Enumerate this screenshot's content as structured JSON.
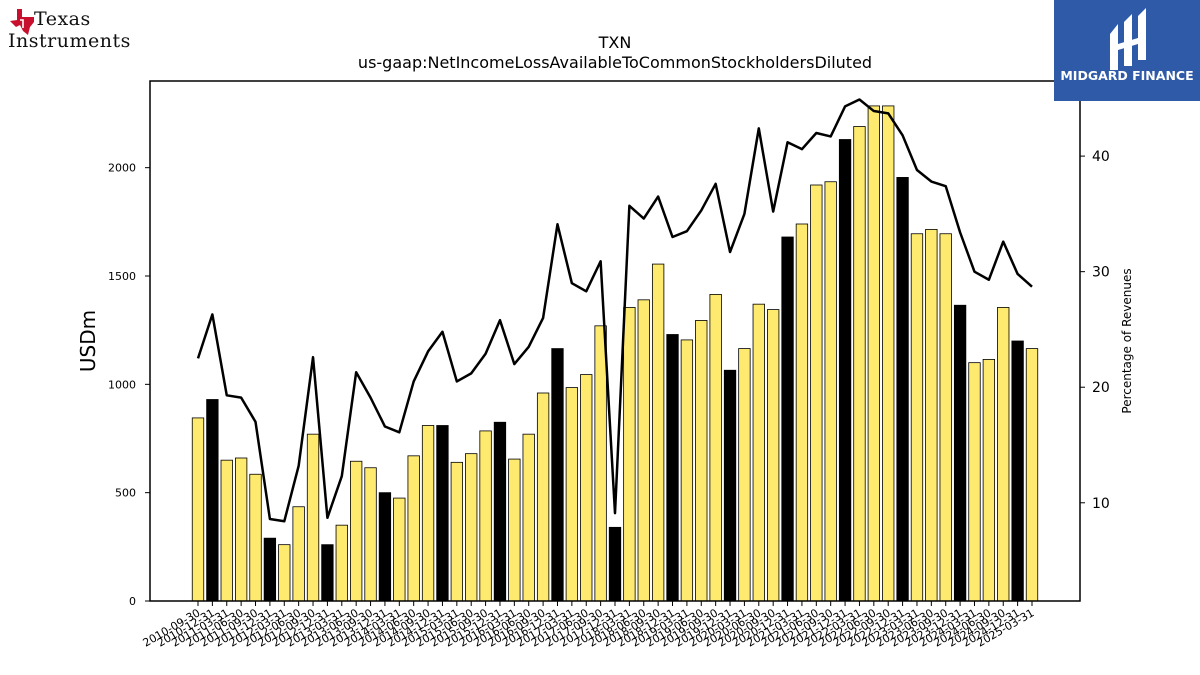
{
  "logos": {
    "left": {
      "line1": "Texas",
      "line2": "Instruments"
    },
    "right": {
      "name": "MIDGARD FINANCE"
    }
  },
  "chart_data": {
    "type": "bar",
    "title": "TXN",
    "subtitle": "us-gaap:NetIncomeLossAvailableToCommonStockholdersDiluted",
    "ylabel": "USDm",
    "y2label": "Percentage of Revenues",
    "ylim": [
      0,
      2400
    ],
    "y2lim": [
      1.5,
      46.5
    ],
    "yticks": [
      0,
      500,
      1000,
      1500,
      2000
    ],
    "y2ticks": [
      10,
      20,
      30,
      40
    ],
    "grid": false,
    "legend": "none",
    "colors": {
      "quarter": "#ffea70",
      "year_end": "#000000",
      "line": "#000000"
    },
    "categories": [
      "2010-09-30",
      "2010-12-31",
      "2011-03-31",
      "2011-06-30",
      "2011-09-30",
      "2011-12-31",
      "2012-03-31",
      "2012-06-30",
      "2012-09-30",
      "2012-12-31",
      "2013-03-31",
      "2013-06-30",
      "2013-09-30",
      "2013-12-31",
      "2014-03-31",
      "2014-06-30",
      "2014-09-30",
      "2014-12-31",
      "2015-03-31",
      "2015-06-30",
      "2015-09-30",
      "2015-12-31",
      "2016-03-31",
      "2016-06-30",
      "2016-09-30",
      "2016-12-31",
      "2017-03-31",
      "2017-06-30",
      "2017-09-30",
      "2017-12-31",
      "2018-03-31",
      "2018-06-30",
      "2018-09-30",
      "2018-12-31",
      "2019-03-31",
      "2019-06-30",
      "2019-09-30",
      "2019-12-31",
      "2020-03-31",
      "2020-06-30",
      "2020-09-30",
      "2020-12-31",
      "2021-03-31",
      "2021-06-30",
      "2021-09-30",
      "2021-12-31",
      "2022-03-31",
      "2022-06-30",
      "2022-09-30",
      "2022-12-31",
      "2023-03-31",
      "2023-06-30",
      "2023-09-30",
      "2023-12-31",
      "2024-03-31",
      "2024-06-30",
      "2024-09-30",
      "2024-12-31",
      "2025-03-31"
    ],
    "values": [
      845,
      930,
      650,
      660,
      585,
      290,
      260,
      435,
      770,
      260,
      350,
      645,
      615,
      500,
      475,
      670,
      810,
      810,
      640,
      680,
      785,
      825,
      655,
      770,
      960,
      1165,
      985,
      1045,
      1270,
      340,
      1355,
      1390,
      1555,
      1230,
      1205,
      1295,
      1415,
      1065,
      1165,
      1370,
      1345,
      1680,
      1740,
      1920,
      1935,
      2130,
      2190,
      2285,
      2285,
      1955,
      1695,
      1715,
      1695,
      1365,
      1100,
      1115,
      1355,
      1200,
      1165
    ],
    "year_end": [
      false,
      true,
      false,
      false,
      false,
      true,
      false,
      false,
      false,
      true,
      false,
      false,
      false,
      true,
      false,
      false,
      false,
      true,
      false,
      false,
      false,
      true,
      false,
      false,
      false,
      true,
      false,
      false,
      false,
      true,
      false,
      false,
      false,
      true,
      false,
      false,
      false,
      true,
      false,
      false,
      false,
      true,
      false,
      false,
      false,
      true,
      false,
      false,
      false,
      true,
      false,
      false,
      false,
      true,
      false,
      false,
      false,
      true,
      false
    ],
    "series": [
      {
        "name": "Percentage of Revenues",
        "axis": "right",
        "values": [
          22.5,
          26.3,
          19.3,
          19.1,
          17.0,
          8.6,
          8.4,
          13.2,
          22.6,
          8.7,
          12.3,
          21.3,
          19.1,
          16.6,
          16.1,
          20.5,
          23.1,
          24.8,
          20.5,
          21.2,
          22.9,
          25.8,
          22.0,
          23.5,
          26.0,
          34.1,
          29.0,
          28.3,
          30.9,
          9.1,
          35.7,
          34.6,
          36.5,
          33.0,
          33.5,
          35.3,
          37.6,
          31.7,
          35.0,
          42.4,
          35.2,
          41.2,
          40.6,
          42.0,
          41.7,
          44.3,
          44.9,
          43.9,
          43.7,
          41.8,
          38.8,
          37.8,
          37.4,
          33.4,
          30.0,
          29.3,
          32.6,
          29.8,
          28.7
        ]
      }
    ]
  }
}
